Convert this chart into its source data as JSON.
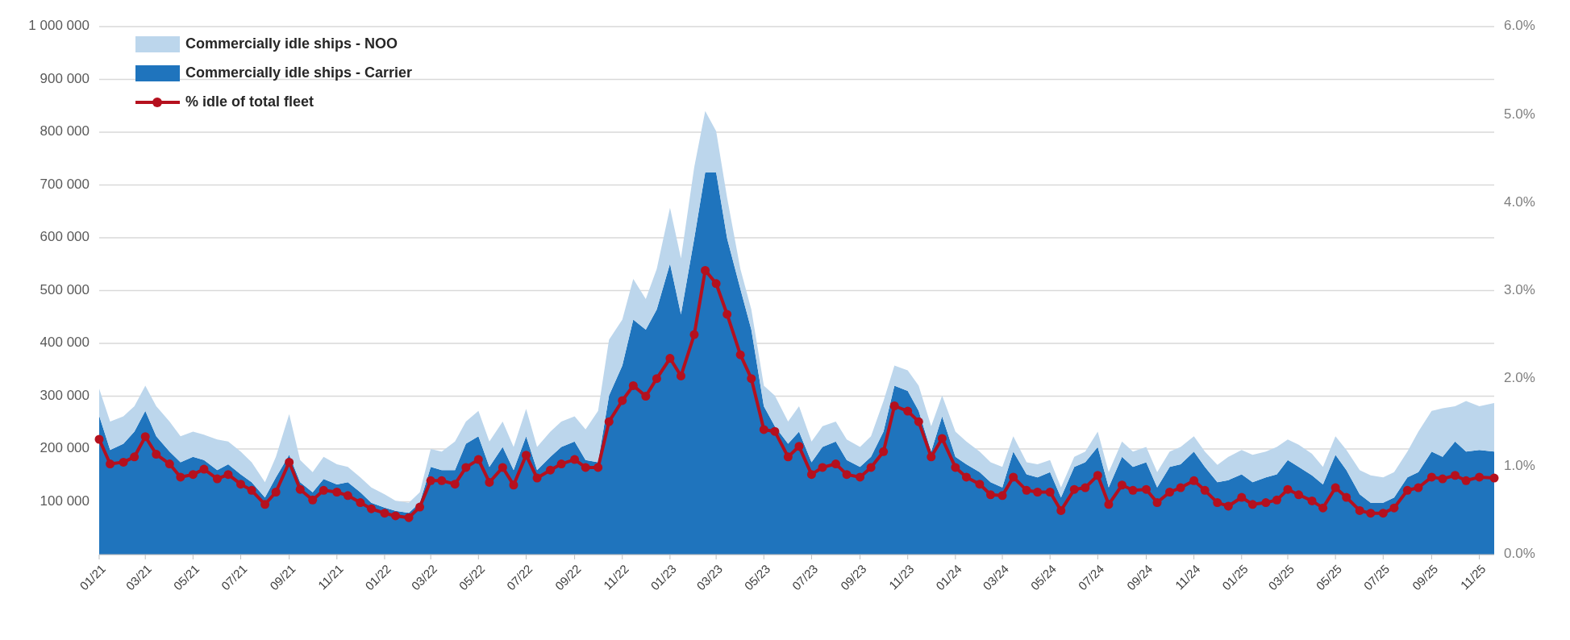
{
  "chart_data": {
    "type": "area",
    "stacked": true,
    "grid": "y",
    "legend": "top left",
    "line_style": "solid",
    "x": [
      "2021-01-01",
      "2021-01-15",
      "2021-02-01",
      "2021-02-15",
      "2021-03-01",
      "2021-03-15",
      "2021-04-01",
      "2021-04-15",
      "2021-05-01",
      "2021-05-15",
      "2021-06-01",
      "2021-06-15",
      "2021-07-01",
      "2021-07-15",
      "2021-08-01",
      "2021-08-15",
      "2021-09-01",
      "2021-09-15",
      "2021-10-01",
      "2021-10-15",
      "2021-11-01",
      "2021-11-15",
      "2021-12-01",
      "2021-12-15",
      "2022-01-01",
      "2022-01-15",
      "2022-02-01",
      "2022-02-15",
      "2022-03-01",
      "2022-03-15",
      "2022-04-01",
      "2022-04-15",
      "2022-05-01",
      "2022-05-15",
      "2022-06-01",
      "2022-06-15",
      "2022-07-01",
      "2022-07-15",
      "2022-08-01",
      "2022-08-15",
      "2022-09-01",
      "2022-09-15",
      "2022-10-01",
      "2022-10-15",
      "2022-11-01",
      "2022-11-15",
      "2022-12-01",
      "2022-12-15",
      "2023-01-01",
      "2023-01-15",
      "2023-02-01",
      "2023-02-15",
      "2023-03-01",
      "2023-03-15",
      "2023-04-01",
      "2023-04-15",
      "2023-05-01",
      "2023-05-15",
      "2023-06-01",
      "2023-06-15",
      "2023-07-01",
      "2023-07-15",
      "2023-08-01",
      "2023-08-15",
      "2023-09-01",
      "2023-09-15",
      "2023-10-01",
      "2023-10-15",
      "2023-11-01",
      "2023-11-15",
      "2023-12-01",
      "2023-12-15",
      "2024-01-01",
      "2024-01-15",
      "2024-02-01",
      "2024-02-15",
      "2024-03-01",
      "2024-03-15",
      "2024-04-01",
      "2024-04-15",
      "2024-05-01",
      "2024-05-15",
      "2024-06-01",
      "2024-06-15",
      "2024-07-01",
      "2024-07-15",
      "2024-08-01",
      "2024-08-15",
      "2024-09-01",
      "2024-09-15",
      "2024-10-01",
      "2024-10-15",
      "2024-11-01",
      "2024-11-15",
      "2024-12-01",
      "2024-12-15",
      "2025-01-01",
      "2025-01-15",
      "2025-02-01",
      "2025-02-15",
      "2025-03-01",
      "2025-03-15",
      "2025-04-01",
      "2025-04-15",
      "2025-05-01",
      "2025-05-15",
      "2025-06-01",
      "2025-06-15",
      "2025-07-01",
      "2025-07-15",
      "2025-08-01",
      "2025-08-15",
      "2025-09-01",
      "2025-09-15",
      "2025-10-01",
      "2025-10-15",
      "2025-11-01",
      "2025-11-20"
    ],
    "xlim": [
      "2021-01-01",
      "2025-11-20"
    ],
    "xticks": [
      {
        "value": "2021-01-01",
        "label": "01/21"
      },
      {
        "value": "2021-03-01",
        "label": "03/21"
      },
      {
        "value": "2021-05-01",
        "label": "05/21"
      },
      {
        "value": "2021-07-01",
        "label": "07/21"
      },
      {
        "value": "2021-09-01",
        "label": "09/21"
      },
      {
        "value": "2021-11-01",
        "label": "11/21"
      },
      {
        "value": "2022-01-01",
        "label": "01/22"
      },
      {
        "value": "2022-03-01",
        "label": "03/22"
      },
      {
        "value": "2022-05-01",
        "label": "05/22"
      },
      {
        "value": "2022-07-01",
        "label": "07/22"
      },
      {
        "value": "2022-09-01",
        "label": "09/22"
      },
      {
        "value": "2022-11-01",
        "label": "11/22"
      },
      {
        "value": "2023-01-01",
        "label": "01/23"
      },
      {
        "value": "2023-03-01",
        "label": "03/23"
      },
      {
        "value": "2023-05-01",
        "label": "05/23"
      },
      {
        "value": "2023-07-01",
        "label": "07/23"
      },
      {
        "value": "2023-09-01",
        "label": "09/23"
      },
      {
        "value": "2023-11-01",
        "label": "11/23"
      },
      {
        "value": "2024-01-01",
        "label": "01/24"
      },
      {
        "value": "2024-03-01",
        "label": "03/24"
      },
      {
        "value": "2024-05-01",
        "label": "05/24"
      },
      {
        "value": "2024-07-01",
        "label": "07/24"
      },
      {
        "value": "2024-09-01",
        "label": "09/24"
      },
      {
        "value": "2024-11-01",
        "label": "11/24"
      },
      {
        "value": "2025-01-01",
        "label": "01/25"
      },
      {
        "value": "2025-03-01",
        "label": "03/25"
      },
      {
        "value": "2025-05-01",
        "label": "05/25"
      },
      {
        "value": "2025-07-01",
        "label": "07/25"
      },
      {
        "value": "2025-09-01",
        "label": "09/25"
      },
      {
        "value": "2025-11-01",
        "label": "11/25"
      }
    ],
    "ylim": [
      0,
      1000000
    ],
    "yticks": [
      {
        "value": 0,
        "label": null
      },
      {
        "value": 100000,
        "label": "100 000"
      },
      {
        "value": 200000,
        "label": "200 000"
      },
      {
        "value": 300000,
        "label": "300 000"
      },
      {
        "value": 400000,
        "label": "400 000"
      },
      {
        "value": 500000,
        "label": "500 000"
      },
      {
        "value": 600000,
        "label": "600 000"
      },
      {
        "value": 700000,
        "label": "700 000"
      },
      {
        "value": 800000,
        "label": "800 000"
      },
      {
        "value": 900000,
        "label": "900 000"
      },
      {
        "value": 1000000,
        "label": "1 000 000"
      }
    ],
    "y2lim": [
      0,
      6
    ],
    "y2ticks": [
      {
        "value": 0,
        "label": "0.0%"
      },
      {
        "value": 1,
        "label": "1.0%"
      },
      {
        "value": 2,
        "label": "2.0%"
      },
      {
        "value": 3,
        "label": "3.0%"
      },
      {
        "value": 4,
        "label": "4.0%"
      },
      {
        "value": 5,
        "label": "5.0%"
      },
      {
        "value": 6,
        "label": "6.0%"
      }
    ],
    "series": [
      {
        "name": "Commercially idle ships - Carrier",
        "color": "#1f74bd",
        "values": [
          263000,
          198000,
          210000,
          233000,
          272000,
          224000,
          195000,
          175000,
          185000,
          179000,
          160000,
          171000,
          152000,
          137000,
          108000,
          146000,
          189000,
          137000,
          118000,
          143000,
          133000,
          137000,
          118000,
          98000,
          89000,
          83000,
          79000,
          98000,
          166000,
          160000,
          160000,
          210000,
          224000,
          166000,
          204000,
          160000,
          224000,
          160000,
          185000,
          204000,
          214000,
          179000,
          175000,
          301000,
          358000,
          445000,
          426000,
          464000,
          551000,
          455000,
          599000,
          724000,
          724000,
          599000,
          503000,
          426000,
          281000,
          243000,
          210000,
          233000,
          175000,
          204000,
          214000,
          179000,
          166000,
          185000,
          233000,
          320000,
          310000,
          272000,
          195000,
          262000,
          185000,
          171000,
          156000,
          137000,
          127000,
          195000,
          152000,
          146000,
          156000,
          108000,
          166000,
          175000,
          204000,
          127000,
          185000,
          166000,
          175000,
          127000,
          166000,
          171000,
          195000,
          166000,
          137000,
          141000,
          152000,
          137000,
          146000,
          152000,
          179000,
          166000,
          150000,
          133000,
          189000,
          160000,
          114000,
          98000,
          98000,
          108000,
          146000,
          156000,
          195000,
          185000,
          214000,
          195000,
          198000,
          195000
        ]
      },
      {
        "name": "Commercially idle ships - NOO",
        "color": "#bcd6ec",
        "values": [
          51000,
          54000,
          52000,
          48000,
          48000,
          57000,
          57000,
          49000,
          48000,
          48000,
          58000,
          43000,
          43000,
          38000,
          29000,
          39000,
          77000,
          42000,
          38000,
          42000,
          38000,
          29000,
          28000,
          29000,
          25000,
          19000,
          19000,
          20000,
          34000,
          35000,
          54000,
          42000,
          48000,
          48000,
          48000,
          44000,
          52000,
          44000,
          48000,
          48000,
          48000,
          58000,
          97000,
          106000,
          87000,
          77000,
          58000,
          77000,
          106000,
          106000,
          135000,
          116000,
          78000,
          77000,
          38000,
          38000,
          39000,
          58000,
          42000,
          48000,
          39000,
          39000,
          38000,
          39000,
          38000,
          39000,
          58000,
          38000,
          39000,
          48000,
          48000,
          39000,
          48000,
          43000,
          39000,
          38000,
          39000,
          29000,
          23000,
          25000,
          23000,
          19000,
          19000,
          20000,
          29000,
          29000,
          29000,
          29000,
          29000,
          29000,
          29000,
          33000,
          29000,
          29000,
          33000,
          44000,
          46000,
          52000,
          49000,
          52000,
          39000,
          42000,
          41000,
          33000,
          35000,
          38000,
          46000,
          52000,
          48000,
          48000,
          49000,
          77000,
          77000,
          92000,
          67000,
          96000,
          83000,
          92000
        ]
      },
      {
        "name": "% idle of total fleet",
        "type": "line",
        "marker": "circle",
        "axis": "y2",
        "color": "#b5101e",
        "values": [
          1.31,
          1.03,
          1.05,
          1.11,
          1.34,
          1.14,
          1.03,
          0.88,
          0.91,
          0.97,
          0.86,
          0.91,
          0.8,
          0.73,
          0.57,
          0.71,
          1.05,
          0.74,
          0.62,
          0.73,
          0.71,
          0.67,
          0.59,
          0.52,
          0.47,
          0.44,
          0.42,
          0.54,
          0.84,
          0.84,
          0.8,
          0.99,
          1.08,
          0.82,
          0.99,
          0.79,
          1.13,
          0.87,
          0.96,
          1.03,
          1.08,
          0.99,
          0.99,
          1.51,
          1.75,
          1.92,
          1.8,
          2.0,
          2.23,
          2.03,
          2.5,
          3.23,
          3.08,
          2.73,
          2.27,
          2.0,
          1.42,
          1.4,
          1.11,
          1.23,
          0.91,
          0.99,
          1.03,
          0.91,
          0.88,
          0.99,
          1.17,
          1.69,
          1.63,
          1.51,
          1.11,
          1.32,
          0.99,
          0.88,
          0.8,
          0.68,
          0.67,
          0.88,
          0.73,
          0.71,
          0.71,
          0.5,
          0.74,
          0.76,
          0.9,
          0.57,
          0.79,
          0.73,
          0.74,
          0.59,
          0.71,
          0.76,
          0.84,
          0.73,
          0.59,
          0.55,
          0.65,
          0.57,
          0.59,
          0.62,
          0.74,
          0.68,
          0.61,
          0.53,
          0.76,
          0.65,
          0.5,
          0.47,
          0.47,
          0.53,
          0.73,
          0.76,
          0.88,
          0.86,
          0.9,
          0.84,
          0.88,
          0.87
        ]
      }
    ]
  }
}
